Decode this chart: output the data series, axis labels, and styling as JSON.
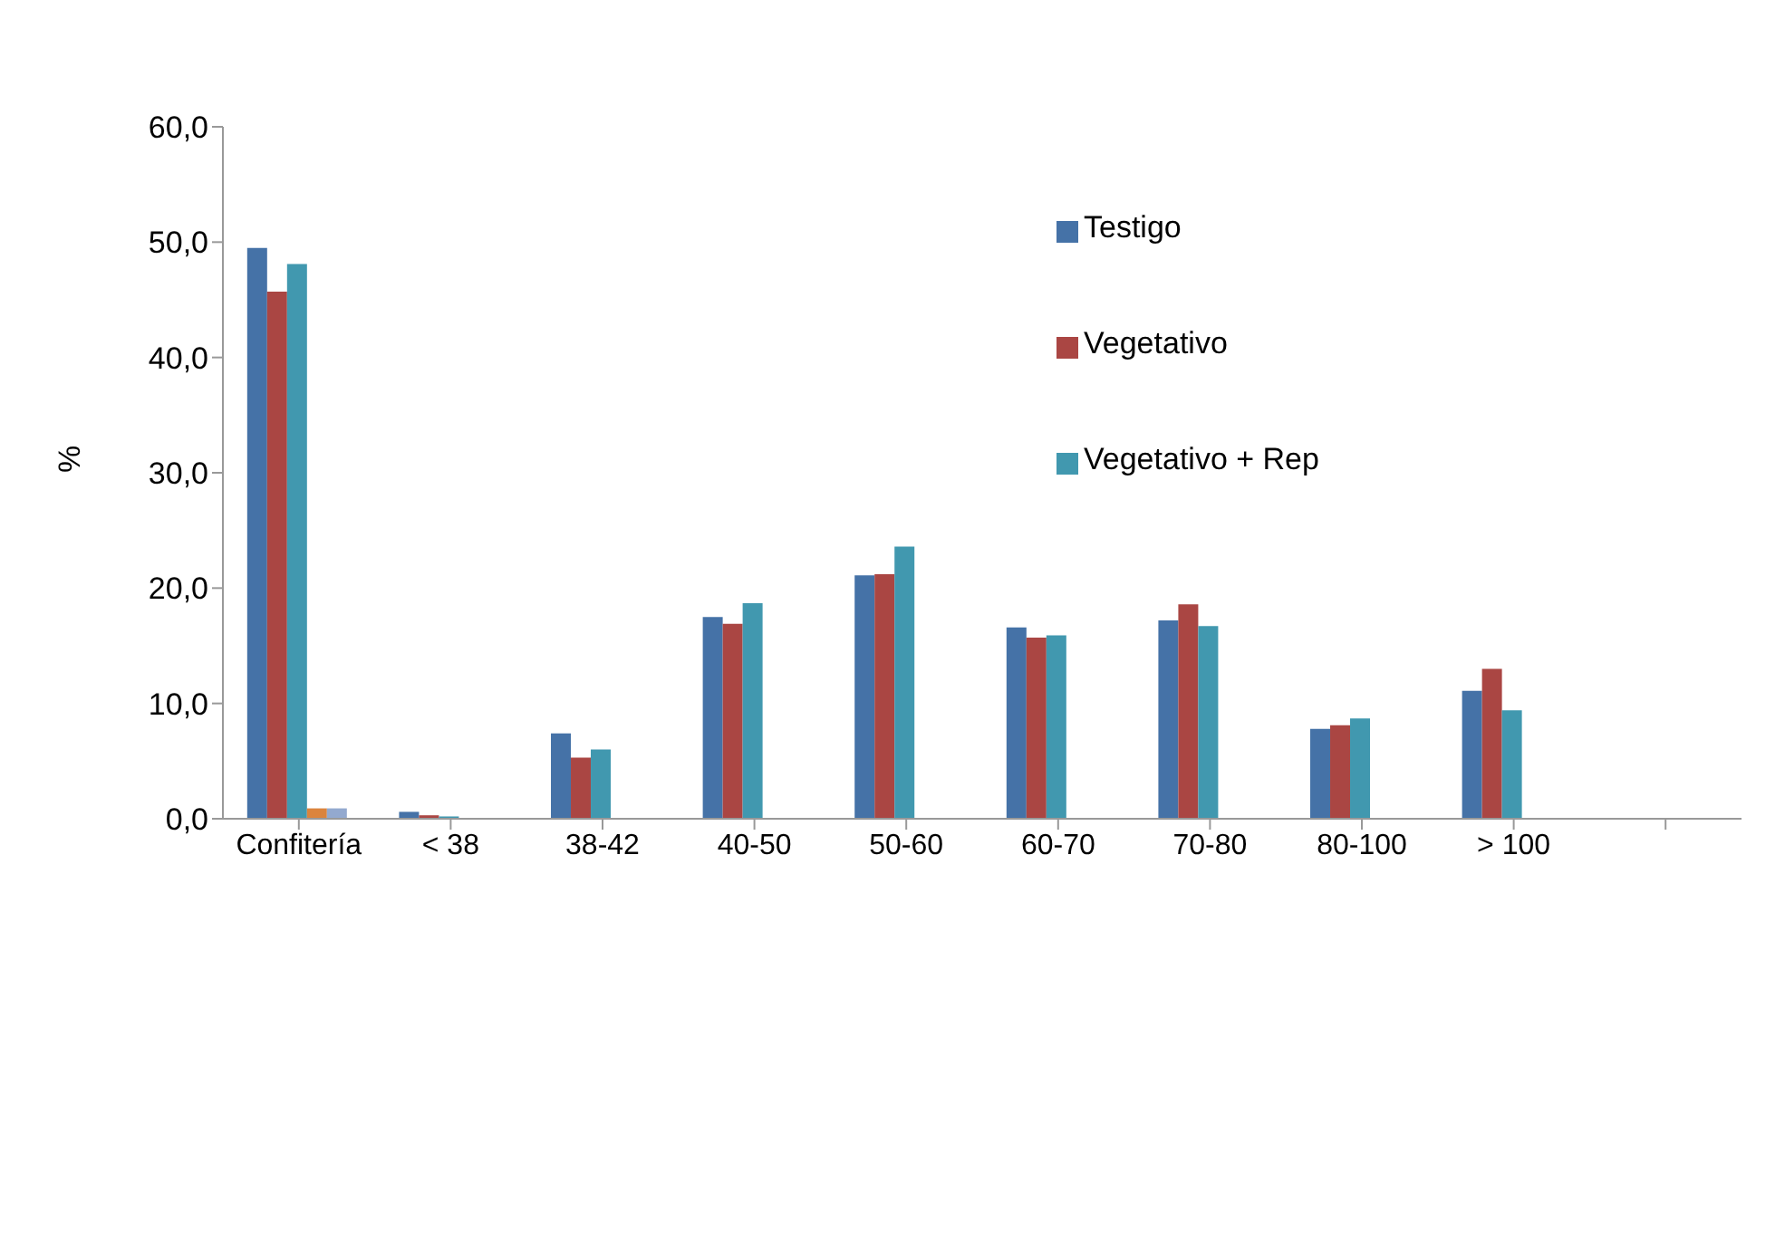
{
  "chart_data": {
    "type": "bar",
    "ylabel": "%",
    "categories": [
      "Confitería",
      "< 38",
      "38-42",
      "40-50",
      "50-60",
      "60-70",
      "70-80",
      "80-100",
      "> 100",
      null
    ],
    "series": [
      {
        "name": "Testigo",
        "color": "#4572a7",
        "values": [
          49.5,
          0.6,
          7.4,
          17.5,
          21.1,
          16.6,
          17.2,
          7.8,
          11.1,
          null
        ]
      },
      {
        "name": "Vegetativo",
        "color": "#aa4643",
        "values": [
          45.7,
          0.3,
          5.3,
          16.9,
          21.2,
          15.7,
          18.6,
          8.1,
          13.0,
          null
        ]
      },
      {
        "name": "Vegetativo + Rep",
        "color": "#4198af",
        "values": [
          48.1,
          0.2,
          6.0,
          18.7,
          23.6,
          15.9,
          16.7,
          8.7,
          9.4,
          null
        ]
      },
      {
        "color": "#db843d",
        "values": [
          0.9,
          null,
          null,
          null,
          null,
          null,
          null,
          null,
          null,
          null
        ]
      },
      {
        "color": "#93a9cf",
        "values": [
          0.9,
          null,
          null,
          null,
          null,
          null,
          null,
          null,
          null,
          null
        ]
      }
    ],
    "ylim": [
      0,
      60
    ],
    "yticks": [
      {
        "value": 0,
        "label": "0,0"
      },
      {
        "value": 10,
        "label": "10,0"
      },
      {
        "value": 20,
        "label": "20,0"
      },
      {
        "value": 30,
        "label": "30,0"
      },
      {
        "value": 40,
        "label": "40,0"
      },
      {
        "value": 50,
        "label": "50,0"
      },
      {
        "value": 60,
        "label": "60,0"
      }
    ],
    "grid": false,
    "legend": "top right"
  }
}
